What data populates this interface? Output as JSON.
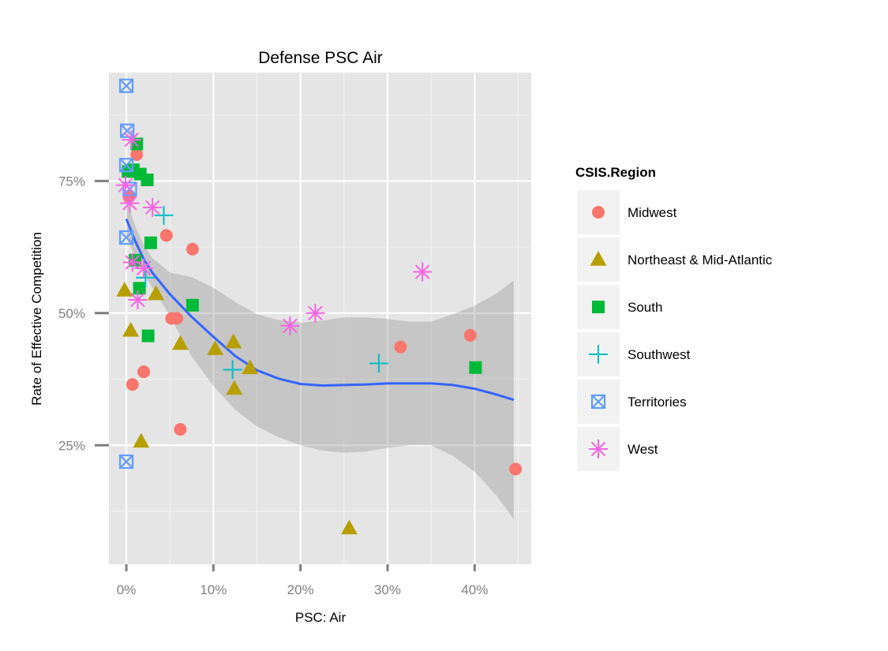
{
  "chart_data": {
    "type": "scatter",
    "title": "Defense PSC Air",
    "xlabel": "PSC: Air",
    "ylabel": "Rate of Effective Competition",
    "xlim": [
      -0.02,
      0.465
    ],
    "ylim": [
      0.025,
      0.955
    ],
    "x_ticks": [
      0,
      0.1,
      0.2,
      0.3,
      0.4
    ],
    "x_tick_labels": [
      "0%",
      "10%",
      "20%",
      "30%",
      "40%"
    ],
    "y_ticks": [
      0.25,
      0.5,
      0.75
    ],
    "y_tick_labels": [
      "25%",
      "50%",
      "75%"
    ],
    "grid": true,
    "legend": {
      "title": "CSIS.Region",
      "position": "right"
    },
    "colors": {
      "panel": "#e5e5e5",
      "grid_major": "#ffffff",
      "grid_minor": "#f2f2f2",
      "smooth_line": "#3366ff",
      "ribbon": "#999999"
    },
    "series": [
      {
        "name": "Midwest",
        "shape": "circle",
        "color": "#f8766d",
        "points": [
          {
            "x": 0.012,
            "y": 0.8
          },
          {
            "x": 0.003,
            "y": 0.72
          },
          {
            "x": 0.046,
            "y": 0.647
          },
          {
            "x": 0.076,
            "y": 0.621
          },
          {
            "x": 0.052,
            "y": 0.49
          },
          {
            "x": 0.058,
            "y": 0.49
          },
          {
            "x": 0.02,
            "y": 0.389
          },
          {
            "x": 0.007,
            "y": 0.365
          },
          {
            "x": 0.062,
            "y": 0.28
          },
          {
            "x": 0.315,
            "y": 0.436
          },
          {
            "x": 0.395,
            "y": 0.458
          },
          {
            "x": 0.447,
            "y": 0.205
          }
        ]
      },
      {
        "name": "Northeast & Mid-Atlantic",
        "shape": "triangle",
        "color": "#b79f00",
        "points": [
          {
            "x": -0.002,
            "y": 0.543
          },
          {
            "x": 0.005,
            "y": 0.467
          },
          {
            "x": 0.034,
            "y": 0.536
          },
          {
            "x": 0.062,
            "y": 0.442
          },
          {
            "x": 0.102,
            "y": 0.432
          },
          {
            "x": 0.123,
            "y": 0.445
          },
          {
            "x": 0.142,
            "y": 0.396
          },
          {
            "x": 0.124,
            "y": 0.357
          },
          {
            "x": 0.017,
            "y": 0.257
          },
          {
            "x": 0.256,
            "y": 0.093
          }
        ]
      },
      {
        "name": "South",
        "shape": "square",
        "color": "#00ba38",
        "points": [
          {
            "x": 0.012,
            "y": 0.82
          },
          {
            "x": 0.002,
            "y": 0.768
          },
          {
            "x": 0.008,
            "y": 0.771
          },
          {
            "x": 0.016,
            "y": 0.763
          },
          {
            "x": 0.024,
            "y": 0.752
          },
          {
            "x": 0.028,
            "y": 0.633
          },
          {
            "x": 0.01,
            "y": 0.6
          },
          {
            "x": 0.015,
            "y": 0.547
          },
          {
            "x": 0.076,
            "y": 0.515
          },
          {
            "x": 0.025,
            "y": 0.457
          },
          {
            "x": 0.401,
            "y": 0.397
          }
        ]
      },
      {
        "name": "Southwest",
        "shape": "plus",
        "color": "#00bfc4",
        "points": [
          {
            "x": 0.043,
            "y": 0.685
          },
          {
            "x": 0.022,
            "y": 0.567
          },
          {
            "x": 0.122,
            "y": 0.393
          },
          {
            "x": 0.29,
            "y": 0.405
          }
        ]
      },
      {
        "name": "Territories",
        "shape": "square-x",
        "color": "#619cff",
        "points": [
          {
            "x": 0.0,
            "y": 0.93
          },
          {
            "x": 0.001,
            "y": 0.845
          },
          {
            "x": 0.0,
            "y": 0.78
          },
          {
            "x": 0.004,
            "y": 0.735
          },
          {
            "x": 0.0,
            "y": 0.643
          },
          {
            "x": 0.0,
            "y": 0.219
          }
        ]
      },
      {
        "name": "West",
        "shape": "asterisk",
        "color": "#f564e3",
        "points": [
          {
            "x": 0.006,
            "y": 0.828
          },
          {
            "x": -0.001,
            "y": 0.742
          },
          {
            "x": 0.004,
            "y": 0.708
          },
          {
            "x": 0.03,
            "y": 0.7
          },
          {
            "x": 0.007,
            "y": 0.596
          },
          {
            "x": 0.02,
            "y": 0.585
          },
          {
            "x": 0.013,
            "y": 0.525
          },
          {
            "x": 0.188,
            "y": 0.476
          },
          {
            "x": 0.217,
            "y": 0.5
          },
          {
            "x": 0.34,
            "y": 0.578
          }
        ]
      }
    ],
    "smooth": {
      "x": [
        0.0,
        0.01,
        0.02,
        0.03,
        0.05,
        0.075,
        0.1,
        0.125,
        0.15,
        0.175,
        0.2,
        0.225,
        0.25,
        0.275,
        0.3,
        0.325,
        0.35,
        0.375,
        0.4,
        0.425,
        0.445
      ],
      "y": [
        0.678,
        0.637,
        0.602,
        0.576,
        0.536,
        0.493,
        0.455,
        0.419,
        0.392,
        0.376,
        0.366,
        0.363,
        0.364,
        0.365,
        0.367,
        0.367,
        0.367,
        0.364,
        0.357,
        0.346,
        0.336
      ],
      "lower": [
        0.642,
        0.608,
        0.575,
        0.548,
        0.495,
        0.418,
        0.362,
        0.317,
        0.286,
        0.265,
        0.25,
        0.24,
        0.236,
        0.238,
        0.245,
        0.25,
        0.25,
        0.23,
        0.2,
        0.155,
        0.11
      ],
      "upper": [
        0.714,
        0.666,
        0.629,
        0.604,
        0.577,
        0.568,
        0.548,
        0.521,
        0.498,
        0.487,
        0.482,
        0.486,
        0.492,
        0.492,
        0.489,
        0.484,
        0.484,
        0.498,
        0.514,
        0.537,
        0.562
      ]
    }
  }
}
